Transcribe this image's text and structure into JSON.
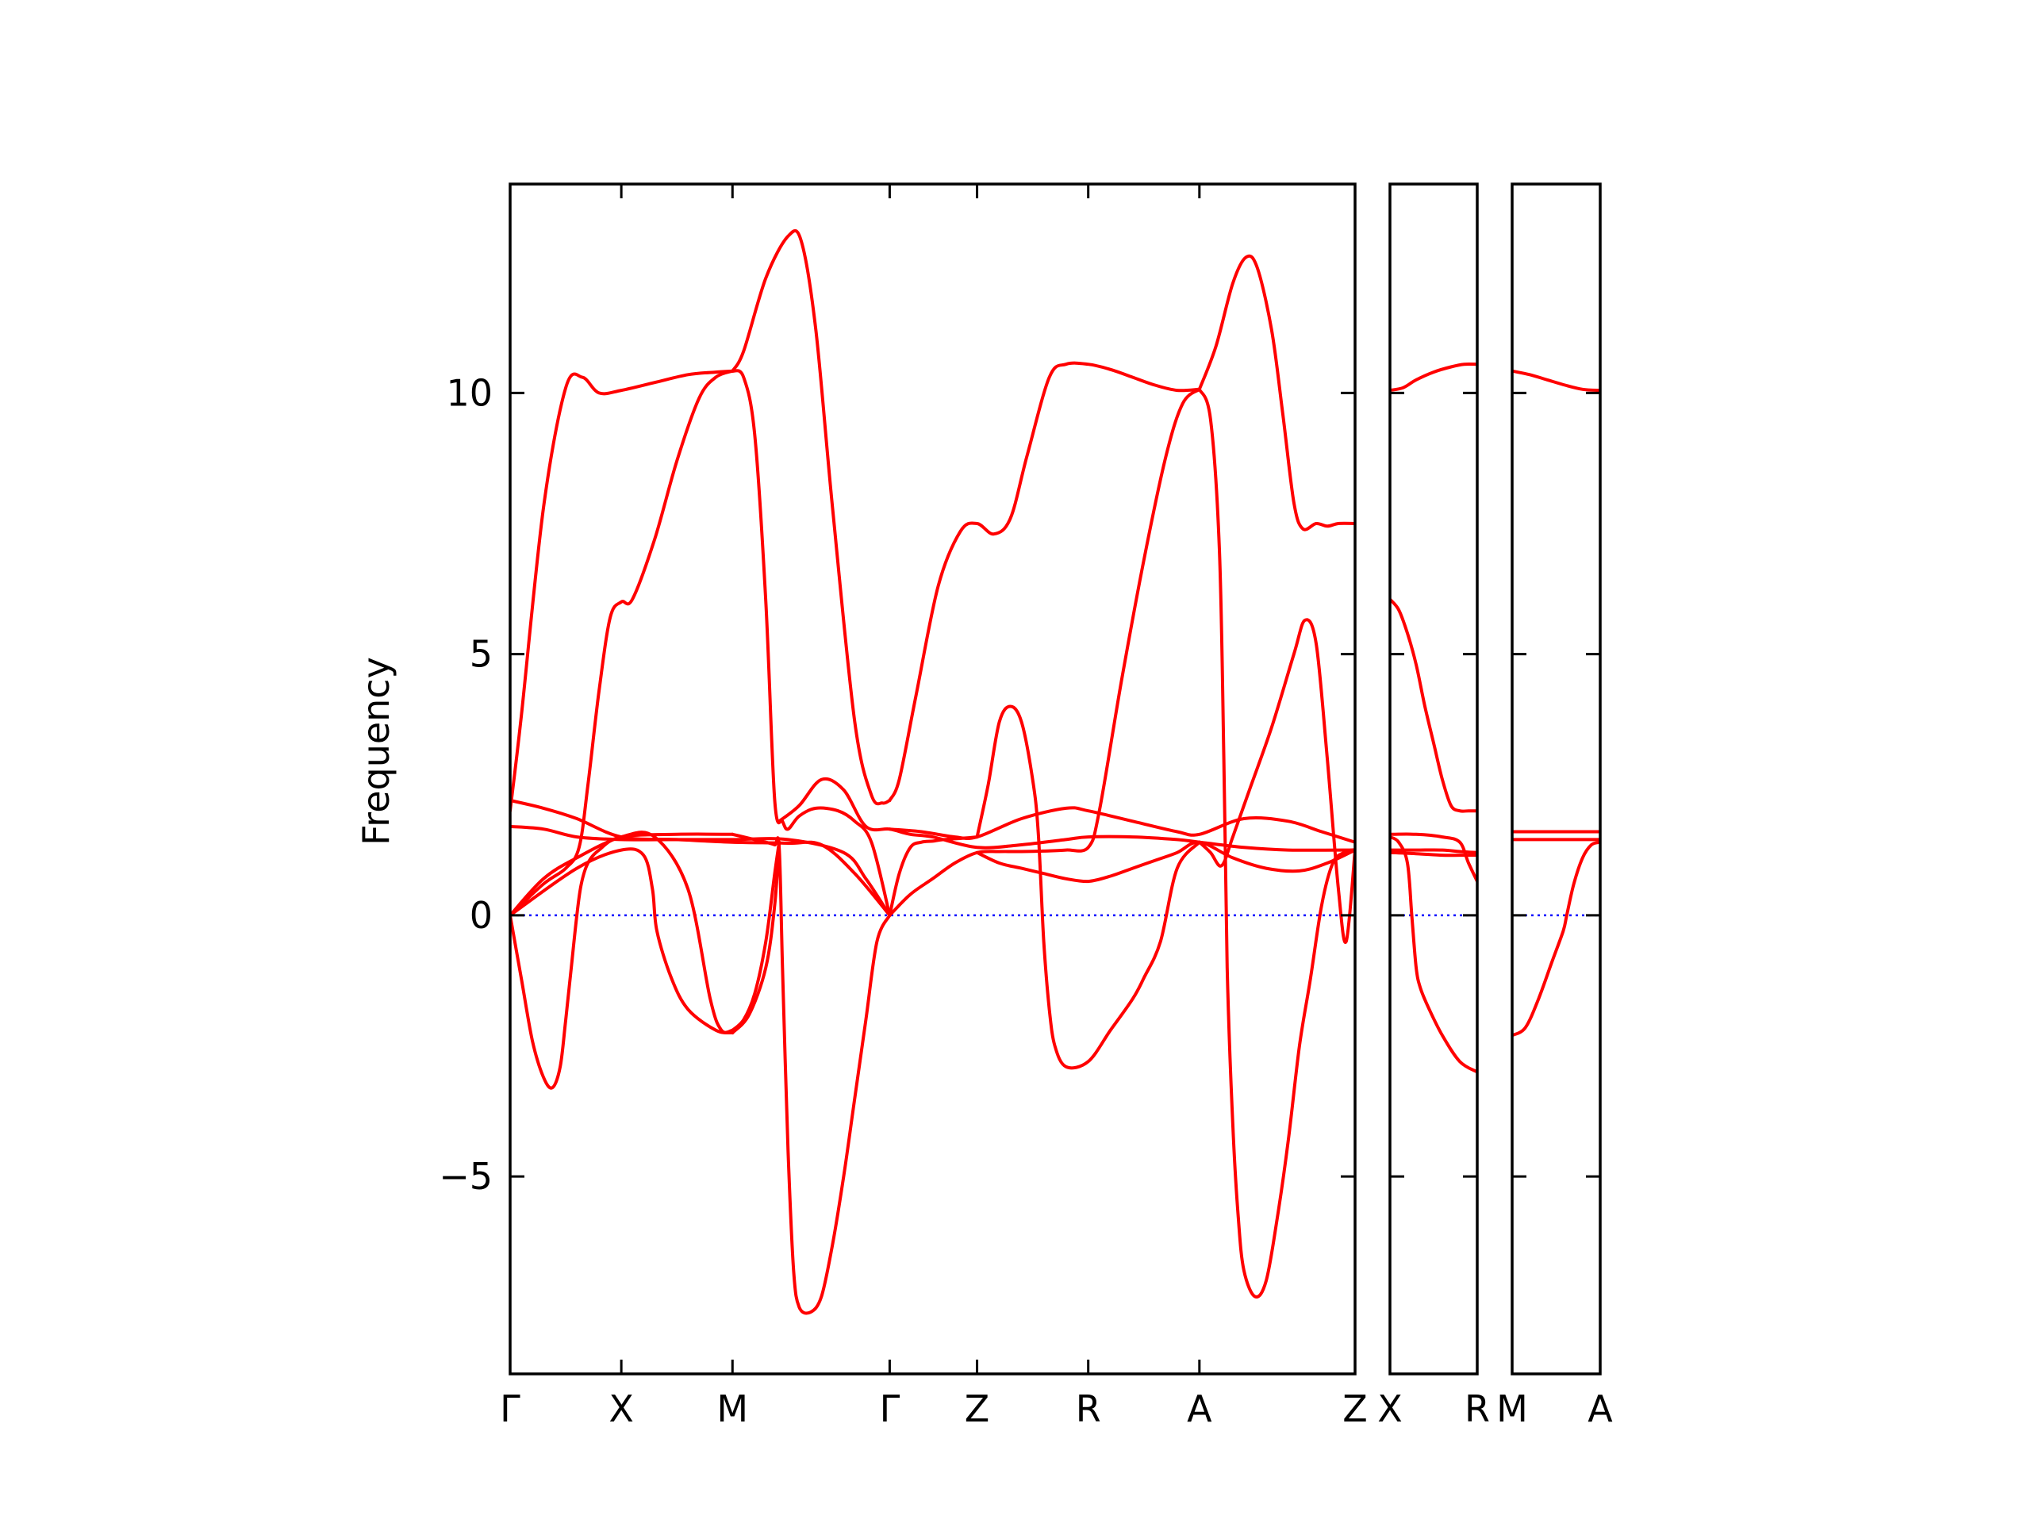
{
  "chart_data": {
    "type": "line",
    "title": "",
    "xlabel": "",
    "ylabel": "Frequency",
    "ylim": [
      -8.78,
      14.0
    ],
    "yticks": [
      -5,
      0,
      5,
      10
    ],
    "ytick_labels": [
      "−5",
      "0",
      "5",
      "10"
    ],
    "grid": false,
    "legend": "none",
    "colors": {
      "bands": "#ff0000",
      "zero_line": "#0000ff",
      "axes": "#000000"
    },
    "panels": [
      {
        "name": "panel-main",
        "xlim": [
          0,
          7.6
        ],
        "ticks": [
          {
            "x": 0.0,
            "label": "Γ"
          },
          {
            "x": 1.0,
            "label": "X"
          },
          {
            "x": 2.0,
            "label": "M"
          },
          {
            "x": 3.414,
            "label": "Γ"
          },
          {
            "x": 4.2,
            "label": "Z"
          },
          {
            "x": 5.2,
            "label": "R"
          },
          {
            "x": 6.2,
            "label": "A"
          },
          {
            "x": 7.6,
            "label": "Z"
          }
        ],
        "series": [
          {
            "x": [
              0,
              0.1,
              0.3,
              0.5,
              0.65,
              0.8,
              1.0,
              1.3,
              1.6,
              1.85,
              2.0
            ],
            "values": [
              2.0,
              3.8,
              7.8,
              10.1,
              10.3,
              10.0,
              10.05,
              10.2,
              10.35,
              10.4,
              10.42
            ]
          },
          {
            "x": [
              2.0,
              2.1,
              2.3,
              2.5,
              2.62,
              2.75,
              2.9,
              3.1,
              3.25,
              3.35,
              3.414
            ],
            "values": [
              10.42,
              10.8,
              12.2,
              13.0,
              12.9,
              11.2,
              7.8,
              3.7,
              2.3,
              2.15,
              2.2
            ]
          },
          {
            "x": [
              3.414,
              3.5,
              3.65,
              3.85,
              4.05,
              4.2,
              4.35,
              4.5,
              4.65,
              4.85,
              5.0,
              5.2,
              5.4,
              5.6,
              5.8,
              6.0,
              6.2
            ],
            "values": [
              2.2,
              2.6,
              4.2,
              6.3,
              7.35,
              7.5,
              7.3,
              7.6,
              8.8,
              10.3,
              10.55,
              10.55,
              10.45,
              10.3,
              10.15,
              10.05,
              10.07
            ]
          },
          {
            "x": [
              6.2,
              6.35,
              6.5,
              6.62,
              6.72,
              6.85,
              6.95,
              7.05,
              7.13,
              7.25,
              7.35,
              7.45,
              7.6
            ],
            "values": [
              10.07,
              10.9,
              12.1,
              12.6,
              12.4,
              11.2,
              9.6,
              7.9,
              7.4,
              7.5,
              7.45,
              7.5,
              7.5
            ]
          },
          {
            "x": [
              0,
              0.3,
              0.5,
              0.62,
              0.7,
              0.8,
              0.9,
              1.0,
              1.1,
              1.3,
              1.5,
              1.7,
              1.85,
              2.0
            ],
            "values": [
              0,
              0.6,
              0.9,
              1.3,
              2.5,
              4.3,
              5.7,
              6.0,
              6.05,
              7.2,
              8.7,
              9.9,
              10.3,
              10.42
            ]
          },
          {
            "x": [
              2.0,
              2.1,
              2.2,
              2.3,
              2.38,
              2.45,
              2.5,
              2.6,
              2.75,
              2.95,
              3.1,
              3.25,
              3.414
            ],
            "values": [
              10.42,
              10.3,
              9.2,
              6.0,
              2.2,
              1.8,
              1.65,
              1.9,
              2.05,
              2.0,
              1.8,
              1.4,
              0.0
            ]
          },
          {
            "x": [
              3.414,
              3.6,
              3.8,
              4.0,
              4.2,
              4.4,
              4.6,
              4.8,
              5.0,
              5.2,
              5.3,
              5.5,
              5.7,
              5.9,
              6.05,
              6.2
            ],
            "values": [
              0.0,
              0.4,
              0.7,
              1.0,
              1.2,
              1.22,
              1.22,
              1.23,
              1.25,
              1.3,
              2.0,
              4.5,
              6.8,
              8.8,
              9.8,
              10.07
            ]
          },
          {
            "x": [
              6.2,
              6.3,
              6.38,
              6.42,
              6.45,
              6.5,
              6.55,
              6.6,
              6.7,
              6.8,
              6.9,
              7.0,
              7.1,
              7.2,
              7.3,
              7.4,
              7.5,
              7.57,
              7.6
            ],
            "values": [
              10.07,
              9.5,
              7.0,
              3.0,
              -1.0,
              -4.0,
              -5.8,
              -6.8,
              -7.3,
              -7.0,
              -5.8,
              -4.3,
              -2.5,
              -1.2,
              0.2,
              1.0,
              1.2,
              1.25,
              1.25
            ]
          },
          {
            "x": [
              0,
              0.1,
              0.2,
              0.3,
              0.38,
              0.45,
              0.5,
              0.55,
              0.6,
              0.64,
              0.7,
              0.8,
              1.0,
              1.5,
              2.0
            ],
            "values": [
              0,
              -1.2,
              -2.4,
              -3.1,
              -3.3,
              -2.9,
              -2.0,
              -1.0,
              0.0,
              0.6,
              1.0,
              1.25,
              1.5,
              1.55,
              1.55
            ]
          },
          {
            "x": [
              2.0,
              2.1,
              2.2,
              2.3,
              2.38,
              2.42,
              2.45,
              2.5,
              2.55,
              2.6,
              2.7,
              2.8,
              2.9,
              3.0,
              3.1,
              3.2,
              3.3,
              3.414
            ],
            "values": [
              1.55,
              1.5,
              1.45,
              1.4,
              1.35,
              1.3,
              -1.0,
              -4.5,
              -6.8,
              -7.5,
              -7.6,
              -7.3,
              -6.3,
              -5.0,
              -3.5,
              -2.0,
              -0.5,
              0.0
            ]
          },
          {
            "x": [
              3.414,
              3.5,
              3.6,
              3.7,
              3.8,
              3.9,
              4.1,
              4.2
            ],
            "values": [
              0.0,
              0.8,
              1.3,
              1.4,
              1.42,
              1.45,
              1.48,
              1.5
            ]
          },
          {
            "x": [
              4.2,
              4.3,
              4.4,
              4.5,
              4.6,
              4.7,
              4.75,
              4.8,
              4.85,
              4.9,
              5.0,
              5.2,
              5.4,
              5.6,
              5.7,
              5.85,
              6.0,
              6.2
            ],
            "values": [
              1.5,
              2.5,
              3.7,
              4.0,
              3.7,
              2.6,
              1.6,
              -0.5,
              -1.8,
              -2.5,
              -2.9,
              -2.8,
              -2.2,
              -1.6,
              -1.2,
              -0.5,
              0.9,
              1.4
            ]
          },
          {
            "x": [
              6.2,
              6.3,
              6.4,
              6.5,
              6.65,
              6.85,
              7.05,
              7.15,
              7.25,
              7.35,
              7.45,
              7.52,
              7.6
            ],
            "values": [
              1.4,
              1.2,
              0.95,
              1.5,
              2.4,
              3.6,
              5.0,
              5.65,
              5.2,
              3.0,
              0.5,
              -0.5,
              1.25
            ]
          },
          {
            "x": [
              0,
              0.3,
              0.6,
              1.0,
              1.3,
              1.6,
              1.8,
              1.9,
              2.0
            ],
            "values": [
              0,
              0.7,
              1.1,
              1.5,
              1.5,
              0.5,
              -1.6,
              -2.2,
              -2.2
            ]
          },
          {
            "x": [
              2.0,
              2.1,
              2.2,
              2.3,
              2.38,
              2.42
            ],
            "values": [
              -2.2,
              -2.0,
              -1.5,
              -0.5,
              0.8,
              1.4
            ]
          },
          {
            "x": [
              0,
              0.6,
              1.0,
              1.2,
              1.28,
              1.32,
              1.45,
              1.6,
              1.85,
              2.0
            ],
            "values": [
              0,
              0.9,
              1.25,
              1.15,
              0.5,
              -0.3,
              -1.2,
              -1.8,
              -2.2,
              -2.25
            ]
          },
          {
            "x": [
              2.0,
              2.15,
              2.3,
              2.38,
              2.42
            ],
            "values": [
              -2.25,
              -1.9,
              -1.0,
              0.2,
              1.4
            ]
          },
          {
            "x": [
              0,
              0.3,
              0.6,
              1.0,
              1.5,
              2.0,
              2.5,
              2.8,
              3.1,
              3.414
            ],
            "values": [
              2.2,
              2.05,
              1.85,
              1.5,
              1.45,
              1.4,
              1.38,
              1.35,
              0.8,
              0.0
            ]
          },
          {
            "x": [
              0,
              0.3,
              0.6,
              1.0,
              1.5,
              2.0,
              2.5,
              3.0,
              3.2,
              3.414
            ],
            "values": [
              1.7,
              1.65,
              1.5,
              1.45,
              1.45,
              1.45,
              1.45,
              1.2,
              0.7,
              0.0
            ]
          },
          {
            "x": [
              2.42,
              2.6,
              2.8,
              3.0,
              3.2,
              3.414,
              3.6,
              3.8,
              4.2,
              4.6,
              5.0,
              5.2,
              5.6,
              6.0,
              6.2,
              6.6,
              7.0,
              7.6
            ],
            "values": [
              1.8,
              2.1,
              2.6,
              2.4,
              1.7,
              1.65,
              1.55,
              1.5,
              1.3,
              1.35,
              1.45,
              1.5,
              1.5,
              1.45,
              1.4,
              1.3,
              1.25,
              1.25
            ]
          },
          {
            "x": [
              3.414,
              3.7,
              4.0,
              4.2,
              4.6,
              5.0,
              5.2,
              5.6,
              6.0,
              6.2,
              6.6,
              7.0,
              7.3,
              7.6
            ],
            "values": [
              1.65,
              1.6,
              1.5,
              1.5,
              1.85,
              2.05,
              2.0,
              1.8,
              1.6,
              1.55,
              1.85,
              1.8,
              1.6,
              1.4
            ]
          },
          {
            "x": [
              4.2,
              4.4,
              4.6,
              4.8,
              5.0,
              5.2,
              5.4,
              5.6,
              5.8,
              6.0,
              6.2,
              6.5,
              6.8,
              7.1,
              7.35,
              7.6
            ],
            "values": [
              1.2,
              1.0,
              0.9,
              0.8,
              0.7,
              0.65,
              0.75,
              0.9,
              1.05,
              1.2,
              1.4,
              1.1,
              0.9,
              0.85,
              1.0,
              1.25
            ]
          }
        ]
      },
      {
        "name": "panel-xr",
        "xlim": [
          0,
          1
        ],
        "ticks": [
          {
            "x": 0,
            "label": "X"
          },
          {
            "x": 1,
            "label": "R"
          }
        ],
        "series": [
          {
            "x": [
              0,
              0.15,
              0.3,
              0.5,
              0.7,
              0.85,
              1.0
            ],
            "values": [
              10.05,
              10.1,
              10.25,
              10.4,
              10.5,
              10.55,
              10.55
            ]
          },
          {
            "x": [
              0,
              0.1,
              0.2,
              0.3,
              0.4,
              0.5,
              0.6,
              0.7,
              0.8,
              0.9,
              1.0
            ],
            "values": [
              6.05,
              5.85,
              5.4,
              4.8,
              4.0,
              3.3,
              2.6,
              2.1,
              2.0,
              2.0,
              2.0
            ]
          },
          {
            "x": [
              0,
              0.1,
              0.2,
              0.25,
              0.3,
              0.35,
              0.45,
              0.6,
              0.8,
              1.0
            ],
            "values": [
              1.5,
              1.4,
              1.0,
              0.0,
              -1.0,
              -1.4,
              -1.8,
              -2.3,
              -2.8,
              -3.0
            ]
          },
          {
            "x": [
              0,
              0.3,
              0.6,
              0.8,
              0.9,
              1.0
            ],
            "values": [
              1.55,
              1.55,
              1.5,
              1.4,
              1.0,
              0.65
            ]
          },
          {
            "x": [
              0,
              0.3,
              0.6,
              0.8,
              1.0
            ],
            "values": [
              1.25,
              1.25,
              1.25,
              1.22,
              1.2
            ]
          },
          {
            "x": [
              0,
              0.3,
              0.6,
              0.8,
              1.0
            ],
            "values": [
              1.2,
              1.18,
              1.15,
              1.15,
              1.15
            ]
          }
        ]
      },
      {
        "name": "panel-ma",
        "xlim": [
          0,
          1
        ],
        "ticks": [
          {
            "x": 0,
            "label": "M"
          },
          {
            "x": 1,
            "label": "A"
          }
        ],
        "series": [
          {
            "x": [
              0,
              0.2,
              0.4,
              0.6,
              0.8,
              1.0
            ],
            "values": [
              10.42,
              10.35,
              10.25,
              10.15,
              10.07,
              10.05
            ]
          },
          {
            "x": [
              0,
              1
            ],
            "values": [
              1.6,
              1.6
            ]
          },
          {
            "x": [
              0,
              1
            ],
            "values": [
              1.45,
              1.45
            ]
          },
          {
            "x": [
              0,
              0.15,
              0.3,
              0.45,
              0.58,
              0.62,
              0.7,
              0.8,
              0.9,
              1.0
            ],
            "values": [
              -2.3,
              -2.15,
              -1.6,
              -0.9,
              -0.3,
              0.0,
              0.6,
              1.1,
              1.35,
              1.4
            ]
          }
        ]
      }
    ]
  }
}
